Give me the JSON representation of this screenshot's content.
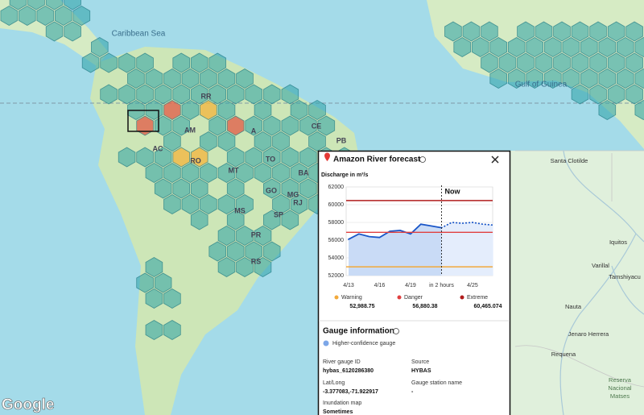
{
  "map": {
    "seas": [
      "Caribbean Sea",
      "Gulf of Guinea"
    ],
    "labels": [
      "RR",
      "AM",
      "AC",
      "RO",
      "A",
      "MT",
      "TO",
      "CE",
      "PB",
      "BA",
      "GO",
      "MG",
      "MS",
      "SP",
      "RJ",
      "PR",
      "RS"
    ],
    "logo": "Google"
  },
  "inset_map": {
    "labels": [
      "Santa Clotilde",
      "Iquitos",
      "Varillal",
      "Tamshiyacu",
      "Nauta",
      "Jenaro Herrera",
      "Requena"
    ],
    "reserve": [
      "Reserva",
      "Nacional",
      "Matses"
    ]
  },
  "chart_data": {
    "type": "line",
    "title": "Amazon River forecast",
    "ylabel": "Discharge in m³/s",
    "categories": [
      "4/13",
      null,
      null,
      "4/16",
      null,
      null,
      "4/19",
      null,
      null,
      "in 2 hours",
      null,
      null,
      "4/25",
      null,
      null
    ],
    "series": [
      {
        "color": "#1a56c8",
        "area": "#c9dbf6",
        "values": [
          56100,
          56700,
          56400,
          56300,
          57000,
          57100,
          56700,
          57800,
          57600,
          57400,
          null,
          null,
          null,
          null,
          null
        ]
      },
      {
        "color": "#1a56c8",
        "area": "#e4edfc",
        "dashed": true,
        "values": [
          null,
          null,
          null,
          null,
          null,
          null,
          null,
          null,
          null,
          57400,
          58000,
          57900,
          58000,
          57800,
          57700
        ]
      }
    ],
    "ylim": [
      52000,
      62000
    ],
    "yticks": [
      52000,
      54000,
      56000,
      58000,
      60000,
      62000
    ],
    "grid": true,
    "annotations": [
      {
        "text": "Now"
      }
    ],
    "thresholds": [
      {
        "name": "Warning",
        "value": 52988.75,
        "value_label": "52,988.75",
        "color": "#f2a93b"
      },
      {
        "name": "Danger",
        "value": 56880.38,
        "value_label": "56,880.38",
        "color": "#e04040"
      },
      {
        "name": "Extreme",
        "value": 60465.074,
        "value_label": "60,465.074",
        "color": "#b01c1c"
      }
    ]
  },
  "gauge_info": {
    "title": "Gauge information",
    "badge": "Higher-confidence gauge",
    "fields": [
      {
        "label": "River gauge ID",
        "value": "hybas_6120286380"
      },
      {
        "label": "Source",
        "value": "HYBAS"
      },
      {
        "label": "Lat/Long",
        "value": "-3.377083,-71.922917"
      },
      {
        "label": "Gauge station name",
        "value": "-"
      },
      {
        "label": "Inundation map",
        "value": "Sometimes"
      }
    ]
  }
}
